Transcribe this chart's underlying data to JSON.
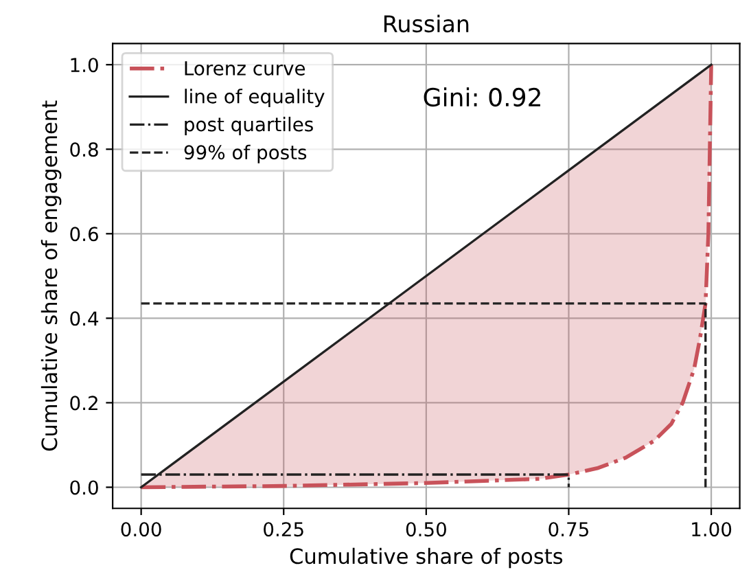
{
  "chart_data": {
    "type": "line",
    "title": "Russian",
    "xlabel": "Cumulative share of posts",
    "ylabel": "Cumulative share of engagement",
    "series": [
      {
        "name": "Lorenz curve",
        "color": "#c8525a",
        "line_style": "dashdot",
        "x": [
          0,
          0.25,
          0.5,
          0.7,
          0.75,
          0.8,
          0.85,
          0.9,
          0.93,
          0.95,
          0.97,
          0.98,
          0.99,
          0.995,
          1.0
        ],
        "values": [
          0,
          0.003,
          0.01,
          0.02,
          0.03,
          0.045,
          0.07,
          0.11,
          0.15,
          0.2,
          0.28,
          0.35,
          0.435,
          0.6,
          1.0
        ],
        "lower": [
          0,
          0.003,
          0.01,
          0.02,
          0.03,
          0.045,
          0.07,
          0.11,
          0.15,
          0.2,
          0.28,
          0.35,
          0.435,
          0.6,
          1.0
        ],
        "upper": [
          0,
          0.25,
          0.5,
          0.7,
          0.75,
          0.8,
          0.85,
          0.9,
          0.93,
          0.95,
          0.97,
          0.98,
          0.99,
          0.995,
          1.0
        ]
      },
      {
        "name": "line of equality",
        "color": "#222222",
        "line_style": "solid",
        "x": [
          0,
          1
        ],
        "values": [
          0,
          1
        ]
      },
      {
        "name": "post quartiles",
        "color": "#222222",
        "line_style": "dashdot",
        "x": [
          0,
          0.75,
          0.75
        ],
        "values": [
          0.03,
          0.03,
          0
        ]
      },
      {
        "name": "99% of posts",
        "color": "#222222",
        "line_style": "dashed",
        "x": [
          0,
          0.99,
          0.99
        ],
        "values": [
          0.435,
          0.435,
          0
        ]
      }
    ],
    "annotations": [
      "Gini: 0.92"
    ],
    "xlim": [
      -0.05,
      1.05
    ],
    "ylim": [
      -0.05,
      1.05
    ],
    "xticks": [
      {
        "value": 0,
        "label": "0.00"
      },
      0.25,
      {
        "value": 0.5,
        "label": "0.50"
      },
      0.75,
      {
        "value": 1,
        "label": "1.00"
      }
    ],
    "yticks": [
      {
        "value": 0,
        "label": "0.0"
      },
      0.2,
      0.4,
      0.6,
      0.8,
      {
        "value": 1,
        "label": "1.0"
      }
    ],
    "grid": true,
    "legend": "top left",
    "marker": "none"
  }
}
